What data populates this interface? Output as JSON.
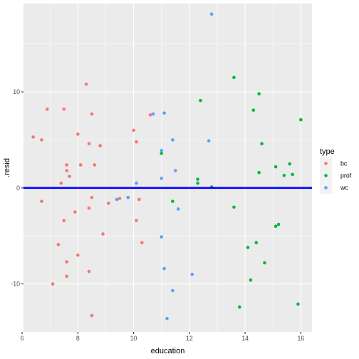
{
  "chart_data": {
    "type": "scatter",
    "title": "",
    "xlabel": "education",
    "ylabel": ".resid",
    "xlim": [
      6.05,
      16.4
    ],
    "ylim": [
      -15,
      19.2
    ],
    "x_ticks": [
      6,
      8,
      10,
      12,
      14,
      16
    ],
    "x_tick_labels": [
      "6",
      "8",
      "10",
      "12",
      "14",
      "16"
    ],
    "y_ticks": [
      -10,
      0,
      10
    ],
    "y_tick_labels": [
      "-10",
      "0",
      "10"
    ],
    "x_minor_ticks": [
      7,
      9,
      11,
      13,
      15
    ],
    "y_minor_ticks": [
      -5,
      5,
      15
    ],
    "grid": true,
    "background": "#EBEBEB",
    "hline": {
      "y": 0,
      "color": "#0000FF"
    },
    "legend": {
      "title": "type",
      "position": "right"
    },
    "series": [
      {
        "name": "bc",
        "color": "#F8766D",
        "points": [
          [
            6.4,
            5.3
          ],
          [
            6.7,
            5.0
          ],
          [
            6.9,
            8.2
          ],
          [
            6.7,
            -1.4
          ],
          [
            7.1,
            -10.0
          ],
          [
            7.3,
            -5.9
          ],
          [
            7.4,
            0.5
          ],
          [
            7.5,
            8.2
          ],
          [
            7.5,
            -3.4
          ],
          [
            7.6,
            2.4
          ],
          [
            7.6,
            1.8
          ],
          [
            7.6,
            -9.2
          ],
          [
            7.6,
            -7.7
          ],
          [
            7.7,
            1.2
          ],
          [
            7.9,
            -2.5
          ],
          [
            8.0,
            5.6
          ],
          [
            8.0,
            -7.0
          ],
          [
            8.1,
            2.4
          ],
          [
            8.3,
            10.8
          ],
          [
            8.4,
            4.6
          ],
          [
            8.4,
            -8.7
          ],
          [
            8.4,
            -2.1
          ],
          [
            8.5,
            -1.0
          ],
          [
            8.5,
            7.7
          ],
          [
            8.5,
            -13.3
          ],
          [
            8.6,
            2.4
          ],
          [
            8.8,
            4.4
          ],
          [
            8.9,
            -4.8
          ],
          [
            9.1,
            -1.6
          ],
          [
            9.5,
            -1.1
          ],
          [
            10.0,
            6.0
          ],
          [
            10.1,
            4.8
          ],
          [
            10.1,
            -3.4
          ],
          [
            10.2,
            -1.2
          ],
          [
            10.3,
            -5.7
          ],
          [
            10.6,
            7.6
          ]
        ]
      },
      {
        "name": "prof",
        "color": "#00BA38",
        "points": [
          [
            11.0,
            3.6
          ],
          [
            11.4,
            -1.4
          ],
          [
            12.3,
            0.9
          ],
          [
            12.3,
            0.5
          ],
          [
            12.4,
            9.1
          ],
          [
            12.8,
            0.1
          ],
          [
            13.6,
            11.5
          ],
          [
            13.6,
            -2.0
          ],
          [
            13.8,
            -12.4
          ],
          [
            14.1,
            -6.2
          ],
          [
            14.2,
            -9.6
          ],
          [
            14.3,
            8.1
          ],
          [
            14.4,
            -5.7
          ],
          [
            14.5,
            9.8
          ],
          [
            14.5,
            1.6
          ],
          [
            14.6,
            4.6
          ],
          [
            14.7,
            -7.8
          ],
          [
            15.1,
            -4.0
          ],
          [
            15.1,
            2.2
          ],
          [
            15.2,
            -3.8
          ],
          [
            15.4,
            1.3
          ],
          [
            15.6,
            2.5
          ],
          [
            15.7,
            1.4
          ],
          [
            15.9,
            -12.1
          ],
          [
            16.0,
            7.1
          ]
        ]
      },
      {
        "name": "wc",
        "color": "#619CFF",
        "points": [
          [
            9.4,
            -1.2
          ],
          [
            9.8,
            -1.0
          ],
          [
            10.1,
            0.5
          ],
          [
            10.7,
            7.7
          ],
          [
            11.0,
            3.9
          ],
          [
            11.0,
            1.0
          ],
          [
            11.0,
            -5.1
          ],
          [
            11.1,
            7.8
          ],
          [
            11.1,
            -8.4
          ],
          [
            11.2,
            -13.6
          ],
          [
            11.4,
            5.0
          ],
          [
            11.4,
            -10.7
          ],
          [
            11.5,
            1.8
          ],
          [
            11.6,
            -2.2
          ],
          [
            12.1,
            -9.0
          ],
          [
            12.7,
            4.9
          ],
          [
            12.8,
            18.1
          ]
        ]
      }
    ]
  }
}
